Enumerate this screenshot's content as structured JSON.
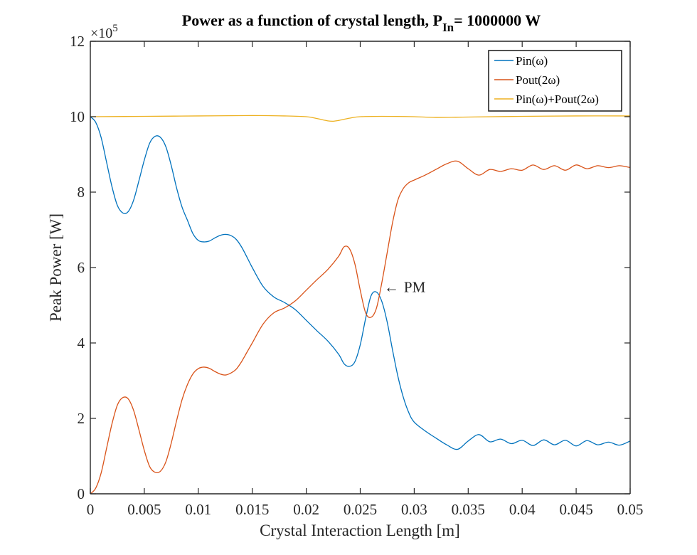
{
  "chart_data": {
    "type": "line",
    "title": "Power as a function of crystal length, P",
    "title_subscript": "In",
    "title_suffix": "= 1000000 W",
    "xlabel": "Crystal Interaction Length [m]",
    "ylabel": "Peak Power [W]",
    "xlim": [
      0,
      0.05
    ],
    "ylim": [
      0,
      1200000
    ],
    "y_exponent_label": "×10",
    "y_exponent_power": "5",
    "x_ticks": [
      0,
      0.005,
      0.01,
      0.015,
      0.02,
      0.025,
      0.03,
      0.035,
      0.04,
      0.045,
      0.05
    ],
    "x_tick_labels": [
      "0",
      "0.005",
      "0.01",
      "0.015",
      "0.02",
      "0.025",
      "0.03",
      "0.035",
      "0.04",
      "0.045",
      "0.05"
    ],
    "y_ticks": [
      0,
      200000,
      400000,
      600000,
      800000,
      1000000,
      1200000
    ],
    "y_tick_labels": [
      "0",
      "2",
      "4",
      "6",
      "8",
      "10",
      "12"
    ],
    "grid": false,
    "legend_position": "top-right",
    "series": [
      {
        "name": "Pin(ω)",
        "color": "#0072BD",
        "x": [
          0,
          0.0005,
          0.001,
          0.0015,
          0.002,
          0.0025,
          0.003,
          0.0035,
          0.004,
          0.0045,
          0.005,
          0.0055,
          0.006,
          0.0065,
          0.007,
          0.0075,
          0.008,
          0.0085,
          0.009,
          0.0095,
          0.01,
          0.0105,
          0.011,
          0.0115,
          0.012,
          0.0125,
          0.013,
          0.0135,
          0.014,
          0.0145,
          0.015,
          0.016,
          0.017,
          0.018,
          0.019,
          0.02,
          0.021,
          0.022,
          0.023,
          0.0235,
          0.024,
          0.0245,
          0.025,
          0.0255,
          0.026,
          0.0265,
          0.027,
          0.0275,
          0.028,
          0.0285,
          0.029,
          0.0295,
          0.03,
          0.031,
          0.032,
          0.033,
          0.034,
          0.035,
          0.036,
          0.037,
          0.038,
          0.039,
          0.04,
          0.041,
          0.042,
          0.043,
          0.044,
          0.045,
          0.046,
          0.047,
          0.048,
          0.049,
          0.05
        ],
        "y": [
          1000000,
          985000,
          945000,
          880000,
          815000,
          765000,
          745000,
          748000,
          778000,
          830000,
          885000,
          930000,
          948000,
          945000,
          920000,
          870000,
          810000,
          760000,
          725000,
          690000,
          672000,
          668000,
          670000,
          678000,
          685000,
          688000,
          685000,
          675000,
          655000,
          628000,
          600000,
          550000,
          522000,
          507000,
          488000,
          460000,
          432000,
          405000,
          370000,
          345000,
          338000,
          350000,
          395000,
          465000,
          525000,
          535000,
          510000,
          455000,
          380000,
          310000,
          255000,
          215000,
          190000,
          167000,
          148000,
          130000,
          118000,
          140000,
          157000,
          138000,
          145000,
          133000,
          142000,
          128000,
          143000,
          130000,
          142000,
          127000,
          141000,
          130000,
          137000,
          129000,
          140000
        ]
      },
      {
        "name": "Pout(2ω)",
        "color": "#D95319",
        "x": [
          0,
          0.0005,
          0.001,
          0.0015,
          0.002,
          0.0025,
          0.003,
          0.0035,
          0.004,
          0.0045,
          0.005,
          0.0055,
          0.006,
          0.0065,
          0.007,
          0.0075,
          0.008,
          0.0085,
          0.009,
          0.0095,
          0.01,
          0.0105,
          0.011,
          0.0115,
          0.012,
          0.0125,
          0.013,
          0.0135,
          0.014,
          0.0145,
          0.015,
          0.016,
          0.017,
          0.018,
          0.019,
          0.02,
          0.021,
          0.022,
          0.023,
          0.0235,
          0.024,
          0.0245,
          0.025,
          0.0255,
          0.026,
          0.0265,
          0.027,
          0.0275,
          0.028,
          0.0285,
          0.029,
          0.0295,
          0.03,
          0.031,
          0.032,
          0.033,
          0.034,
          0.035,
          0.036,
          0.037,
          0.038,
          0.039,
          0.04,
          0.041,
          0.042,
          0.043,
          0.044,
          0.045,
          0.046,
          0.047,
          0.048,
          0.049,
          0.05
        ],
        "y": [
          0,
          15000,
          55000,
          120000,
          185000,
          235000,
          255000,
          252000,
          222000,
          170000,
          115000,
          72000,
          57000,
          60000,
          85000,
          135000,
          195000,
          250000,
          290000,
          318000,
          332000,
          336000,
          333000,
          325000,
          318000,
          315000,
          320000,
          330000,
          350000,
          375000,
          400000,
          450000,
          480000,
          493000,
          512000,
          540000,
          568000,
          595000,
          630000,
          655000,
          650000,
          610000,
          540000,
          480000,
          468000,
          492000,
          560000,
          640000,
          720000,
          780000,
          810000,
          825000,
          832000,
          845000,
          860000,
          875000,
          882000,
          862000,
          845000,
          860000,
          855000,
          862000,
          858000,
          872000,
          860000,
          870000,
          858000,
          872000,
          862000,
          870000,
          865000,
          870000,
          865000
        ]
      },
      {
        "name": "Pin(ω)+Pout(2ω)",
        "color": "#EDB120",
        "x": [
          0,
          0.005,
          0.01,
          0.015,
          0.018,
          0.02,
          0.021,
          0.022,
          0.0225,
          0.023,
          0.024,
          0.025,
          0.027,
          0.03,
          0.032,
          0.035,
          0.04,
          0.045,
          0.05
        ],
        "y": [
          1000000,
          1001000,
          1002000,
          1003000,
          1002000,
          1000000,
          995000,
          989000,
          988000,
          990000,
          996000,
          1000000,
          1001000,
          1000000,
          998000,
          999000,
          1001000,
          1002000,
          1002000
        ]
      }
    ],
    "annotation": {
      "text": "PM",
      "arrow": "←",
      "x": 0.0272,
      "y": 527000
    }
  }
}
